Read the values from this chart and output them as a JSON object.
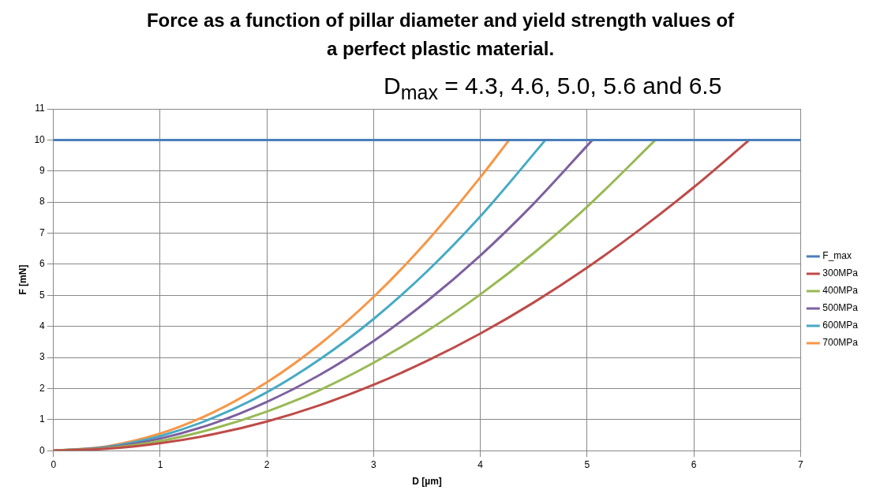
{
  "chart_data": {
    "type": "line",
    "title": "Force as a function of pillar diameter and yield strength values of a perfect plastic material.",
    "xlabel": "D [µm]",
    "ylabel": "F [mN]",
    "annotations": [
      "D$_{max}$ = 4.3, 4.6, 5.0, 5.6 and 6.5"
    ],
    "xlim": [
      0,
      7
    ],
    "xticks": [
      0,
      1,
      2,
      3,
      4,
      5,
      6,
      7
    ],
    "ylim": [
      0,
      11
    ],
    "yticks": [
      0,
      1,
      2,
      3,
      4,
      5,
      6,
      7,
      8,
      9,
      10,
      11
    ],
    "grid": true,
    "legend": "right",
    "marker": "none",
    "line_style": "solid",
    "series": [
      {
        "name": "F_max",
        "color": "#4a7ebb",
        "x": [
          0,
          7
        ],
        "values": [
          10,
          10
        ]
      },
      {
        "name": "300MPa",
        "color": "#be4b48",
        "x": [
          0,
          0.5,
          1,
          1.5,
          2,
          2.5,
          3,
          3.5,
          4,
          4.5,
          5,
          5.5,
          6,
          6.52
        ],
        "values": [
          0,
          0.06,
          0.24,
          0.53,
          0.94,
          1.47,
          2.12,
          2.89,
          3.77,
          4.77,
          5.89,
          7.13,
          8.48,
          10
        ]
      },
      {
        "name": "400MPa",
        "color": "#98b954",
        "x": [
          0,
          0.5,
          1,
          1.5,
          2,
          2.5,
          3,
          3.5,
          4,
          4.5,
          5,
          5.64
        ],
        "values": [
          0,
          0.08,
          0.31,
          0.71,
          1.26,
          1.96,
          2.83,
          3.85,
          5.03,
          6.36,
          7.85,
          10
        ]
      },
      {
        "name": "500MPa",
        "color": "#7d60a0",
        "x": [
          0,
          0.5,
          1,
          1.5,
          2,
          2.5,
          3,
          3.5,
          4,
          4.5,
          5.05
        ],
        "values": [
          0,
          0.1,
          0.39,
          0.88,
          1.57,
          2.45,
          3.53,
          4.81,
          6.28,
          7.95,
          10
        ]
      },
      {
        "name": "600MPa",
        "color": "#46aac5",
        "x": [
          0,
          0.5,
          1,
          1.5,
          2,
          2.5,
          3,
          3.5,
          4,
          4.61
        ],
        "values": [
          0,
          0.12,
          0.47,
          1.06,
          1.88,
          2.95,
          4.24,
          5.77,
          7.54,
          10
        ]
      },
      {
        "name": "700MPa",
        "color": "#f79646",
        "x": [
          0,
          0.5,
          1,
          1.5,
          2,
          2.5,
          3,
          3.5,
          4,
          4.27
        ],
        "values": [
          0,
          0.14,
          0.55,
          1.24,
          2.2,
          3.44,
          4.95,
          6.74,
          8.8,
          10
        ]
      }
    ]
  }
}
